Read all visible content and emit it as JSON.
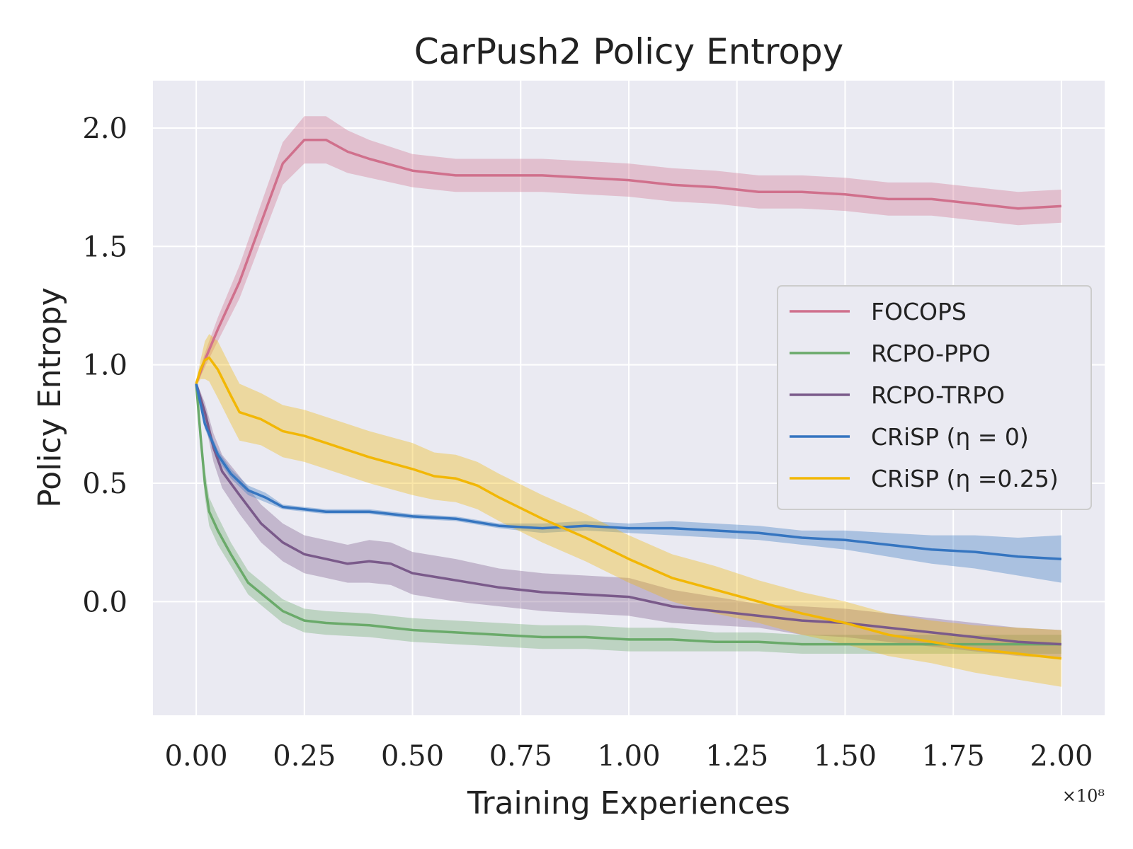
{
  "chart_data": {
    "type": "line",
    "title": "CarPush2 Policy Entropy",
    "xlabel": "Training Experiences",
    "ylabel": "Policy Entropy",
    "x_multiplier": "×10⁸",
    "xlim": [
      -0.1,
      2.1
    ],
    "ylim": [
      -0.48,
      2.2
    ],
    "xticks": [
      0,
      0.25,
      0.5,
      0.75,
      1.0,
      1.25,
      1.5,
      1.75,
      2.0
    ],
    "xtick_labels": [
      "0.00",
      "0.25",
      "0.50",
      "0.75",
      "1.00",
      "1.25",
      "1.50",
      "1.75",
      "2.00"
    ],
    "yticks": [
      0,
      0.5,
      1.0,
      1.5,
      2.0
    ],
    "ytick_labels": [
      "0.0",
      "0.5",
      "1.0",
      "1.5",
      "2.0"
    ],
    "grid": true,
    "legend_position": "center-right",
    "series": [
      {
        "name": "FOCOPS",
        "color": "#d0708c",
        "x": [
          0,
          0.02,
          0.05,
          0.1,
          0.15,
          0.2,
          0.25,
          0.3,
          0.35,
          0.4,
          0.5,
          0.6,
          0.7,
          0.8,
          0.9,
          1.0,
          1.1,
          1.2,
          1.3,
          1.4,
          1.5,
          1.6,
          1.7,
          1.8,
          1.9,
          2.0
        ],
        "y": [
          0.92,
          1.02,
          1.15,
          1.35,
          1.6,
          1.85,
          1.95,
          1.95,
          1.9,
          1.87,
          1.82,
          1.8,
          1.8,
          1.8,
          1.79,
          1.78,
          1.76,
          1.75,
          1.73,
          1.73,
          1.72,
          1.7,
          1.7,
          1.68,
          1.66,
          1.67
        ],
        "band": [
          0.01,
          0.03,
          0.05,
          0.07,
          0.08,
          0.09,
          0.1,
          0.1,
          0.09,
          0.08,
          0.07,
          0.07,
          0.07,
          0.07,
          0.07,
          0.07,
          0.07,
          0.07,
          0.07,
          0.07,
          0.07,
          0.07,
          0.07,
          0.07,
          0.07,
          0.07
        ]
      },
      {
        "name": "RCPO-PPO",
        "color": "#6aaa6a",
        "x": [
          0,
          0.01,
          0.02,
          0.03,
          0.05,
          0.08,
          0.12,
          0.16,
          0.2,
          0.25,
          0.3,
          0.4,
          0.5,
          0.6,
          0.7,
          0.8,
          0.9,
          1.0,
          1.1,
          1.2,
          1.3,
          1.4,
          1.5,
          1.6,
          1.7,
          1.8,
          1.9,
          2.0
        ],
        "y": [
          0.92,
          0.7,
          0.5,
          0.38,
          0.3,
          0.2,
          0.08,
          0.02,
          -0.04,
          -0.08,
          -0.09,
          -0.1,
          -0.12,
          -0.13,
          -0.14,
          -0.15,
          -0.15,
          -0.16,
          -0.16,
          -0.17,
          -0.17,
          -0.18,
          -0.18,
          -0.18,
          -0.18,
          -0.18,
          -0.18,
          -0.18
        ],
        "band": [
          0.01,
          0.04,
          0.06,
          0.06,
          0.06,
          0.05,
          0.05,
          0.05,
          0.05,
          0.05,
          0.05,
          0.05,
          0.05,
          0.05,
          0.05,
          0.05,
          0.05,
          0.05,
          0.05,
          0.04,
          0.04,
          0.04,
          0.04,
          0.04,
          0.04,
          0.04,
          0.04,
          0.04
        ]
      },
      {
        "name": "RCPO-TRPO",
        "color": "#7a5a8a",
        "x": [
          0,
          0.02,
          0.04,
          0.06,
          0.1,
          0.15,
          0.2,
          0.25,
          0.3,
          0.35,
          0.4,
          0.45,
          0.5,
          0.6,
          0.7,
          0.8,
          0.9,
          1.0,
          1.1,
          1.2,
          1.3,
          1.4,
          1.5,
          1.6,
          1.7,
          1.8,
          1.9,
          2.0
        ],
        "y": [
          0.92,
          0.8,
          0.65,
          0.55,
          0.45,
          0.33,
          0.25,
          0.2,
          0.18,
          0.16,
          0.17,
          0.16,
          0.12,
          0.09,
          0.06,
          0.04,
          0.03,
          0.02,
          -0.02,
          -0.04,
          -0.06,
          -0.08,
          -0.09,
          -0.11,
          -0.13,
          -0.15,
          -0.17,
          -0.18
        ],
        "band": [
          0.01,
          0.04,
          0.06,
          0.07,
          0.08,
          0.08,
          0.08,
          0.08,
          0.08,
          0.08,
          0.09,
          0.09,
          0.09,
          0.09,
          0.08,
          0.08,
          0.08,
          0.08,
          0.07,
          0.06,
          0.05,
          0.06,
          0.06,
          0.06,
          0.06,
          0.06,
          0.06,
          0.06
        ]
      },
      {
        "name": "CRiSP (η = 0)",
        "color": "#3575c0",
        "x": [
          0,
          0.02,
          0.05,
          0.08,
          0.12,
          0.16,
          0.2,
          0.25,
          0.3,
          0.4,
          0.5,
          0.6,
          0.7,
          0.8,
          0.9,
          1.0,
          1.1,
          1.2,
          1.3,
          1.4,
          1.5,
          1.6,
          1.7,
          1.8,
          1.9,
          2.0
        ],
        "y": [
          0.92,
          0.75,
          0.62,
          0.54,
          0.47,
          0.44,
          0.4,
          0.39,
          0.38,
          0.38,
          0.36,
          0.35,
          0.32,
          0.31,
          0.32,
          0.31,
          0.31,
          0.3,
          0.29,
          0.27,
          0.26,
          0.24,
          0.22,
          0.21,
          0.19,
          0.18
        ],
        "band": [
          0.01,
          0.02,
          0.02,
          0.02,
          0.02,
          0.02,
          0.01,
          0.01,
          0.01,
          0.01,
          0.01,
          0.01,
          0.01,
          0.02,
          0.02,
          0.02,
          0.03,
          0.03,
          0.03,
          0.03,
          0.04,
          0.05,
          0.06,
          0.07,
          0.08,
          0.1
        ]
      },
      {
        "name": "CRiSP (η =0.25)",
        "color": "#f2b705",
        "x": [
          0,
          0.01,
          0.02,
          0.03,
          0.05,
          0.08,
          0.1,
          0.15,
          0.2,
          0.25,
          0.3,
          0.4,
          0.5,
          0.55,
          0.6,
          0.65,
          0.7,
          0.8,
          0.9,
          1.0,
          1.1,
          1.2,
          1.3,
          1.4,
          1.5,
          1.6,
          1.7,
          1.8,
          1.9,
          2.0
        ],
        "y": [
          0.92,
          0.98,
          1.02,
          1.03,
          0.98,
          0.87,
          0.8,
          0.77,
          0.72,
          0.7,
          0.67,
          0.61,
          0.56,
          0.53,
          0.52,
          0.49,
          0.44,
          0.35,
          0.27,
          0.18,
          0.1,
          0.05,
          0.0,
          -0.05,
          -0.09,
          -0.14,
          -0.17,
          -0.2,
          -0.22,
          -0.24
        ],
        "band": [
          0.01,
          0.04,
          0.08,
          0.1,
          0.12,
          0.12,
          0.12,
          0.11,
          0.11,
          0.11,
          0.11,
          0.11,
          0.11,
          0.1,
          0.1,
          0.1,
          0.1,
          0.1,
          0.1,
          0.1,
          0.1,
          0.1,
          0.09,
          0.09,
          0.09,
          0.09,
          0.09,
          0.1,
          0.11,
          0.12
        ]
      }
    ]
  }
}
